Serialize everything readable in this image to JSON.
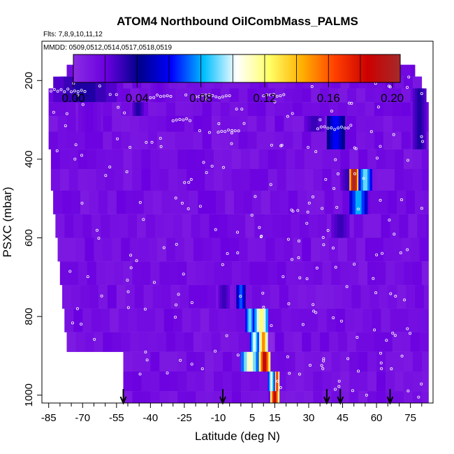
{
  "chart_data": {
    "type": "heatmap",
    "title": "ATOM4 Northbound OilCombMass_PALMS",
    "subtitle_flights": "Flts: 7,8,9,10,11,12",
    "subtitle_dates": "MMDD: 0509,0512,0514,0517,0518,0519",
    "xlabel": "Latitude (deg N)",
    "ylabel": "PSXC (mbar)",
    "xlim": [
      -88,
      85
    ],
    "ylim": [
      1020,
      100
    ],
    "y_reversed": true,
    "x_ticks": [
      -85,
      -70,
      -55,
      -40,
      -25,
      -10,
      5,
      15,
      30,
      45,
      60,
      75
    ],
    "x_tick_labels": [
      "-85",
      "-70",
      "-55",
      "-40",
      "-25",
      "-10",
      "5",
      "15",
      "30",
      "45",
      "60",
      "75"
    ],
    "y_ticks": [
      200,
      400,
      600,
      800,
      1000
    ],
    "y_tick_labels": [
      "200",
      "400",
      "600",
      "800",
      "1000"
    ],
    "colorbar": {
      "min": 0.0,
      "max": 0.205,
      "ticks": [
        0.0,
        0.04,
        0.08,
        0.12,
        0.16,
        0.2
      ],
      "tick_labels": [
        "0.00",
        "0.04",
        "0.08",
        "0.12",
        "0.16",
        "0.20"
      ],
      "colors": [
        "#8a2be2",
        "#6a00e0",
        "#00008b",
        "#0000ff",
        "#00bfff",
        "#ffffff",
        "#ffff66",
        "#ffb000",
        "#ff4000",
        "#cc0000",
        "#a52a2a"
      ]
    },
    "background_value": 0.008,
    "bands": [
      {
        "pmin": 160,
        "pmax": 190,
        "latmin": -77,
        "latmax": 77
      },
      {
        "pmin": 190,
        "pmax": 220,
        "latmin": -80,
        "latmax": 80
      },
      {
        "pmin": 220,
        "pmax": 255,
        "latmin": -85,
        "latmax": 81
      },
      {
        "pmin": 255,
        "pmax": 290,
        "latmin": -85,
        "latmax": 83
      },
      {
        "pmin": 290,
        "pmax": 330,
        "latmin": -85,
        "latmax": 83
      },
      {
        "pmin": 330,
        "pmax": 375,
        "latmin": -85,
        "latmax": 83
      },
      {
        "pmin": 375,
        "pmax": 425,
        "latmin": -84,
        "latmax": 83
      },
      {
        "pmin": 425,
        "pmax": 480,
        "latmin": -84,
        "latmax": 83
      },
      {
        "pmin": 480,
        "pmax": 540,
        "latmin": -83,
        "latmax": 83
      },
      {
        "pmin": 540,
        "pmax": 600,
        "latmin": -82,
        "latmax": 83
      },
      {
        "pmin": 600,
        "pmax": 660,
        "latmin": -81,
        "latmax": 83
      },
      {
        "pmin": 660,
        "pmax": 720,
        "latmin": -80,
        "latmax": 83
      },
      {
        "pmin": 720,
        "pmax": 780,
        "latmin": -79,
        "latmax": 83
      },
      {
        "pmin": 780,
        "pmax": 840,
        "latmin": -78,
        "latmax": 83
      },
      {
        "pmin": 840,
        "pmax": 890,
        "latmin": -77,
        "latmax": 83
      },
      {
        "pmin": 890,
        "pmax": 940,
        "latmin": -52,
        "latmax": 83
      },
      {
        "pmin": 940,
        "pmax": 990,
        "latmin": -52,
        "latmax": 83
      },
      {
        "pmin": 990,
        "pmax": 1020,
        "latmin": -52,
        "latmax": 83
      }
    ],
    "features": [
      {
        "latmin": -83,
        "latmax": -55,
        "pmin": 190,
        "pmax": 255,
        "value": 0.035
      },
      {
        "latmin": -72,
        "latmax": -62,
        "pmin": 255,
        "pmax": 330,
        "value": 0.02
      },
      {
        "latmin": -48,
        "latmax": -43,
        "pmin": 255,
        "pmax": 290,
        "value": 0.035
      },
      {
        "latmin": -62,
        "latmax": -55,
        "pmin": 160,
        "pmax": 190,
        "value": 0.055
      },
      {
        "latmin": -40,
        "latmax": -32,
        "pmin": 190,
        "pmax": 255,
        "value": 0.02
      },
      {
        "latmin": 38,
        "latmax": 46,
        "pmin": 290,
        "pmax": 375,
        "value": 0.06
      },
      {
        "latmin": 28,
        "latmax": 37,
        "pmin": 290,
        "pmax": 330,
        "value": 0.03
      },
      {
        "latmin": 44,
        "latmax": 50,
        "pmin": 425,
        "pmax": 480,
        "value": 0.03
      },
      {
        "latmin": 48,
        "latmax": 52,
        "pmin": 425,
        "pmax": 480,
        "value": 0.21
      },
      {
        "latmin": 52,
        "latmax": 58,
        "pmin": 425,
        "pmax": 480,
        "value": 0.09
      },
      {
        "latmin": 48,
        "latmax": 56,
        "pmin": 480,
        "pmax": 540,
        "value": 0.08
      },
      {
        "latmin": 40,
        "latmax": 48,
        "pmin": 540,
        "pmax": 600,
        "value": 0.03
      },
      {
        "latmin": 76,
        "latmax": 82,
        "pmin": 220,
        "pmax": 375,
        "value": 0.035
      },
      {
        "latmin": -10,
        "latmax": -5,
        "pmin": 720,
        "pmax": 780,
        "value": 0.03
      },
      {
        "latmin": -2,
        "latmax": 2,
        "pmin": 720,
        "pmax": 780,
        "value": 0.07
      },
      {
        "latmin": 2,
        "latmax": 6,
        "pmin": 780,
        "pmax": 840,
        "value": 0.09
      },
      {
        "latmin": 6,
        "latmax": 12,
        "pmin": 780,
        "pmax": 840,
        "value": 0.12
      },
      {
        "latmin": 4,
        "latmax": 8,
        "pmin": 840,
        "pmax": 890,
        "value": 0.1
      },
      {
        "latmin": 8,
        "latmax": 12,
        "pmin": 840,
        "pmax": 890,
        "value": 0.15
      },
      {
        "latmin": 12,
        "latmax": 15,
        "pmin": 840,
        "pmax": 890,
        "value": 0.0
      },
      {
        "latmin": 0,
        "latmax": 8,
        "pmin": 890,
        "pmax": 940,
        "value": 0.11
      },
      {
        "latmin": 8,
        "latmax": 13,
        "pmin": 890,
        "pmax": 940,
        "value": 0.19
      },
      {
        "latmin": 15,
        "latmax": 17,
        "pmin": 940,
        "pmax": 990,
        "value": 0.17
      },
      {
        "latmin": 12,
        "latmax": 15,
        "pmin": 940,
        "pmax": 990,
        "value": 0.1
      },
      {
        "latmin": 13,
        "latmax": 17,
        "pmin": 990,
        "pmax": 1020,
        "value": 0.19
      }
    ],
    "arrow_latitudes": [
      -52,
      -8,
      38,
      44,
      66
    ]
  }
}
